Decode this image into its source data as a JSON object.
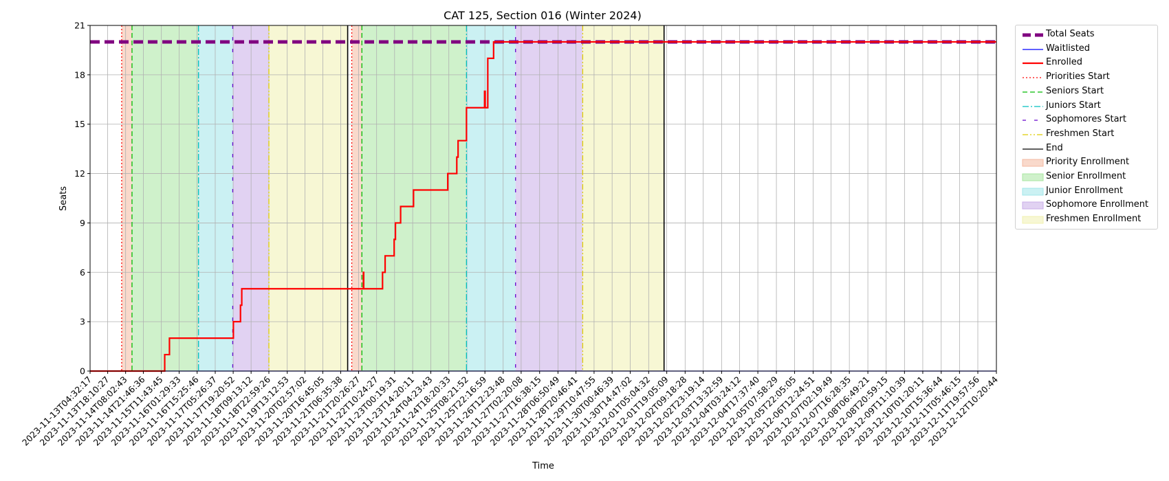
{
  "chart_data": {
    "type": "line",
    "title": "CAT 125, Section 016 (Winter 2024)",
    "xlabel": "Time",
    "ylabel": "Seats",
    "ylim": [
      0,
      21
    ],
    "yticks": [
      0,
      3,
      6,
      9,
      12,
      15,
      18,
      21
    ],
    "xlim": [
      "2023-11-13T04:32:17",
      "2023-12-12T10:20:44"
    ],
    "grid": true,
    "legend_position": "outside-right",
    "xtick_labels": [
      "2023-11-13T04:32:17",
      "2023-11-13T18:10:27",
      "2023-11-14T08:02:43",
      "2023-11-14T21:46:36",
      "2023-11-15T11:43:45",
      "2023-11-16T01:29:33",
      "2023-11-16T15:25:46",
      "2023-11-17T05:26:37",
      "2023-11-17T19:20:52",
      "2023-11-18T09:13:12",
      "2023-11-18T22:59:26",
      "2023-11-19T13:12:53",
      "2023-11-20T02:57:02",
      "2023-11-20T16:45:05",
      "2023-11-21T06:35:38",
      "2023-11-21T20:26:27",
      "2023-11-22T10:24:27",
      "2023-11-23T00:19:31",
      "2023-11-23T14:20:11",
      "2023-11-24T04:23:43",
      "2023-11-24T18:20:33",
      "2023-11-25T08:21:52",
      "2023-11-25T22:16:59",
      "2023-11-26T12:23:48",
      "2023-11-27T02:20:08",
      "2023-11-27T16:38:15",
      "2023-11-28T06:50:49",
      "2023-11-28T20:46:41",
      "2023-11-29T10:47:55",
      "2023-11-30T00:46:39",
      "2023-11-30T14:47:02",
      "2023-12-01T05:04:32",
      "2023-12-01T19:05:09",
      "2023-12-02T09:18:28",
      "2023-12-02T23:19:14",
      "2023-12-03T13:32:59",
      "2023-12-04T03:24:12",
      "2023-12-04T17:37:40",
      "2023-12-05T07:58:29",
      "2023-12-05T22:05:05",
      "2023-12-06T12:24:51",
      "2023-12-07T02:19:49",
      "2023-12-07T16:28:35",
      "2023-12-08T06:49:21",
      "2023-12-08T20:59:15",
      "2023-12-09T11:10:39",
      "2023-12-10T01:20:11",
      "2023-12-10T15:36:44",
      "2023-12-11T05:46:15",
      "2023-12-11T19:57:56",
      "2023-12-12T10:20:44"
    ],
    "series": [
      {
        "name": "Total Seats",
        "color": "#800080",
        "style": "dashed-thick",
        "points": [
          [
            "2023-11-13T04:32:17",
            20
          ],
          [
            "2023-12-12T10:20:44",
            20
          ]
        ]
      },
      {
        "name": "Waitlisted",
        "color": "#0000ff",
        "style": "solid",
        "points": [
          [
            "2023-11-13T04:32:17",
            0
          ],
          [
            "2023-12-12T10:20:44",
            0
          ]
        ]
      },
      {
        "name": "Enrolled",
        "color": "#ff0000",
        "style": "solid-thick",
        "points": [
          [
            "2023-11-13T04:32:17",
            0
          ],
          [
            "2023-11-15T14:20:00",
            0
          ],
          [
            "2023-11-15T14:20:00",
            1
          ],
          [
            "2023-11-15T18:00:00",
            1
          ],
          [
            "2023-11-15T18:00:00",
            2
          ],
          [
            "2023-11-17T19:30:00",
            2
          ],
          [
            "2023-11-17T19:30:00",
            3
          ],
          [
            "2023-11-18T01:00:00",
            3
          ],
          [
            "2023-11-18T01:00:00",
            4
          ],
          [
            "2023-11-18T02:00:00",
            4
          ],
          [
            "2023-11-18T02:00:00",
            5
          ],
          [
            "2023-11-22T00:10:00",
            5
          ],
          [
            "2023-11-22T00:10:00",
            6
          ],
          [
            "2023-11-22T00:25:00",
            6
          ],
          [
            "2023-11-22T00:25:00",
            5
          ],
          [
            "2023-11-22T15:00:00",
            5
          ],
          [
            "2023-11-22T15:00:00",
            6
          ],
          [
            "2023-11-22T17:00:00",
            6
          ],
          [
            "2023-11-22T17:00:00",
            7
          ],
          [
            "2023-11-23T00:00:00",
            7
          ],
          [
            "2023-11-23T00:00:00",
            8
          ],
          [
            "2023-11-23T01:00:00",
            8
          ],
          [
            "2023-11-23T01:00:00",
            9
          ],
          [
            "2023-11-23T05:00:00",
            9
          ],
          [
            "2023-11-23T05:00:00",
            10
          ],
          [
            "2023-11-23T15:00:00",
            10
          ],
          [
            "2023-11-23T15:00:00",
            11
          ],
          [
            "2023-11-24T17:30:00",
            11
          ],
          [
            "2023-11-24T17:30:00",
            12
          ],
          [
            "2023-11-25T00:30:00",
            12
          ],
          [
            "2023-11-25T00:30:00",
            13
          ],
          [
            "2023-11-25T01:30:00",
            13
          ],
          [
            "2023-11-25T01:30:00",
            14
          ],
          [
            "2023-11-25T08:00:00",
            14
          ],
          [
            "2023-11-25T08:00:00",
            16
          ],
          [
            "2023-11-25T22:00:00",
            16
          ],
          [
            "2023-11-25T22:00:00",
            17
          ],
          [
            "2023-11-25T22:30:00",
            17
          ],
          [
            "2023-11-25T22:30:00",
            16
          ],
          [
            "2023-11-26T00:30:00",
            16
          ],
          [
            "2023-11-26T00:30:00",
            19
          ],
          [
            "2023-11-26T05:00:00",
            19
          ],
          [
            "2023-11-26T05:00:00",
            20
          ],
          [
            "2023-12-12T10:20:44",
            20
          ]
        ]
      }
    ],
    "period_starts": [
      {
        "name": "Priorities Start",
        "color": "#ff0000",
        "style": "dotted",
        "times": [
          "2023-11-14T05:00:00",
          "2023-11-21T15:10:00"
        ]
      },
      {
        "name": "Seniors Start",
        "color": "#00bb00",
        "style": "dashed",
        "times": [
          "2023-11-14T13:00:00",
          "2023-11-21T23:00:00"
        ]
      },
      {
        "name": "Juniors Start",
        "color": "#00bfbf",
        "style": "dashdot",
        "times": [
          "2023-11-16T16:30:00",
          "2023-11-25T08:00:00"
        ]
      },
      {
        "name": "Sophomores Start",
        "color": "#6600cc",
        "style": "loosedash",
        "times": [
          "2023-11-17T19:00:00",
          "2023-11-26T22:00:00"
        ]
      },
      {
        "name": "Freshmen Start",
        "color": "#ddcc00",
        "style": "dashdotdot",
        "times": [
          "2023-11-18T23:00:00",
          "2023-11-29T02:00:00"
        ]
      },
      {
        "name": "End",
        "color": "#000000",
        "style": "solid",
        "times": [
          "2023-11-21T12:00:00",
          "2023-12-01T17:00:00"
        ]
      }
    ],
    "periods": [
      {
        "name": "Priority Enrollment",
        "color": "#f4b9a0",
        "ranges": [
          [
            "2023-11-14T05:00:00",
            "2023-11-14T13:00:00"
          ],
          [
            "2023-11-21T15:10:00",
            "2023-11-21T23:00:00"
          ]
        ]
      },
      {
        "name": "Senior Enrollment",
        "color": "#a8e6a0",
        "ranges": [
          [
            "2023-11-14T13:00:00",
            "2023-11-16T16:30:00"
          ],
          [
            "2023-11-21T23:00:00",
            "2023-11-25T08:00:00"
          ]
        ]
      },
      {
        "name": "Junior Enrollment",
        "color": "#a0e6ea",
        "ranges": [
          [
            "2023-11-16T16:30:00",
            "2023-11-17T19:00:00"
          ],
          [
            "2023-11-25T08:00:00",
            "2023-11-26T22:00:00"
          ]
        ]
      },
      {
        "name": "Sophomore Enrollment",
        "color": "#c9ade8",
        "ranges": [
          [
            "2023-11-17T19:00:00",
            "2023-11-18T23:00:00"
          ],
          [
            "2023-11-26T22:00:00",
            "2023-11-29T02:00:00"
          ]
        ]
      },
      {
        "name": "Freshmen Enrollment",
        "color": "#f0f0b0",
        "ranges": [
          [
            "2023-11-18T23:00:00",
            "2023-11-21T12:00:00"
          ],
          [
            "2023-11-29T02:00:00",
            "2023-12-01T17:00:00"
          ]
        ]
      }
    ]
  },
  "legend": [
    {
      "label": "Total Seats",
      "kind": "line",
      "color": "#800080",
      "style": "dashed-thick"
    },
    {
      "label": "Waitlisted",
      "kind": "line",
      "color": "#0000ff",
      "style": "solid"
    },
    {
      "label": "Enrolled",
      "kind": "line",
      "color": "#ff0000",
      "style": "solid-thick"
    },
    {
      "label": "Priorities Start",
      "kind": "line",
      "color": "#ff0000",
      "style": "dotted"
    },
    {
      "label": "Seniors Start",
      "kind": "line",
      "color": "#00bb00",
      "style": "dashed"
    },
    {
      "label": "Juniors Start",
      "kind": "line",
      "color": "#00bfbf",
      "style": "dashdot"
    },
    {
      "label": "Sophomores Start",
      "kind": "line",
      "color": "#6600cc",
      "style": "loosedash"
    },
    {
      "label": "Freshmen Start",
      "kind": "line",
      "color": "#ddcc00",
      "style": "dashdotdot"
    },
    {
      "label": "End",
      "kind": "line",
      "color": "#000000",
      "style": "solid"
    },
    {
      "label": "Priority Enrollment",
      "kind": "patch",
      "color": "#f4b9a0"
    },
    {
      "label": "Senior Enrollment",
      "kind": "patch",
      "color": "#a8e6a0"
    },
    {
      "label": "Junior Enrollment",
      "kind": "patch",
      "color": "#a0e6ea"
    },
    {
      "label": "Sophomore Enrollment",
      "kind": "patch",
      "color": "#c9ade8"
    },
    {
      "label": "Freshmen Enrollment",
      "kind": "patch",
      "color": "#f0f0b0"
    }
  ]
}
